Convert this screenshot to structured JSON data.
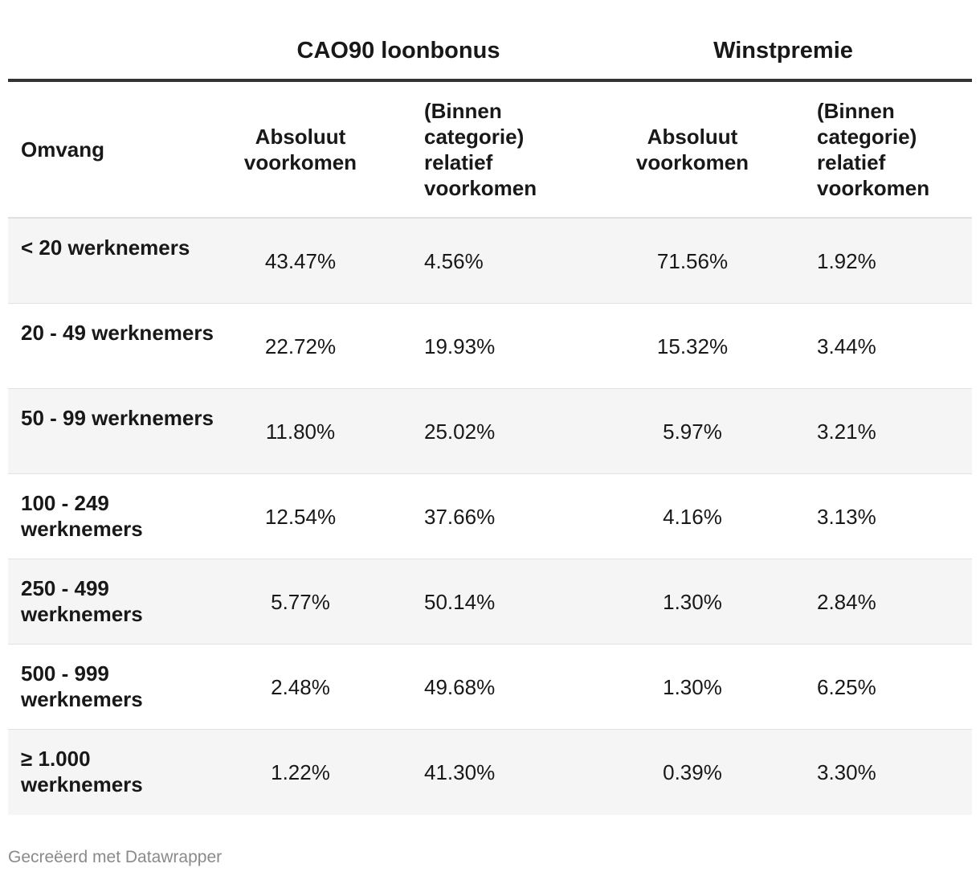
{
  "table": {
    "group_headers": [
      "CAO90 loonbonus",
      "Winstpremie"
    ],
    "column_headers": {
      "omvang": "Omvang",
      "abs_1": "Absoluut voorkomen",
      "rel_1": "(Binnen categorie) relatief voorkomen",
      "abs_2": "Absoluut voorkomen",
      "rel_2": "(Binnen categorie) relatief voorkomen"
    },
    "rows": [
      {
        "label": "< 20 werknemers",
        "abs_1": "43.47%",
        "rel_1": "4.56%",
        "abs_2": "71.56%",
        "rel_2": "1.92%"
      },
      {
        "label": "20 - 49 werknemers",
        "abs_1": "22.72%",
        "rel_1": "19.93%",
        "abs_2": "15.32%",
        "rel_2": "3.44%"
      },
      {
        "label": "50 - 99 werknemers",
        "abs_1": "11.80%",
        "rel_1": "25.02%",
        "abs_2": "5.97%",
        "rel_2": "3.21%"
      },
      {
        "label": "100 - 249 werknemers",
        "abs_1": "12.54%",
        "rel_1": "37.66%",
        "abs_2": "4.16%",
        "rel_2": "3.13%"
      },
      {
        "label": "250 - 499 werknemers",
        "abs_1": "5.77%",
        "rel_1": "50.14%",
        "abs_2": "1.30%",
        "rel_2": "2.84%"
      },
      {
        "label": "500 - 999 werknemers",
        "abs_1": "2.48%",
        "rel_1": "49.68%",
        "abs_2": "1.30%",
        "rel_2": "6.25%"
      },
      {
        "label": "≥ 1.000 werknemers",
        "abs_1": "1.22%",
        "rel_1": "41.30%",
        "abs_2": "0.39%",
        "rel_2": "3.30%"
      }
    ]
  },
  "footer": {
    "credit": "Gecreëerd met Datawrapper"
  },
  "colors": {
    "header_rule": "#333333",
    "row_alt_bg": "#f5f5f5",
    "footer_text": "#8a8a8a"
  }
}
